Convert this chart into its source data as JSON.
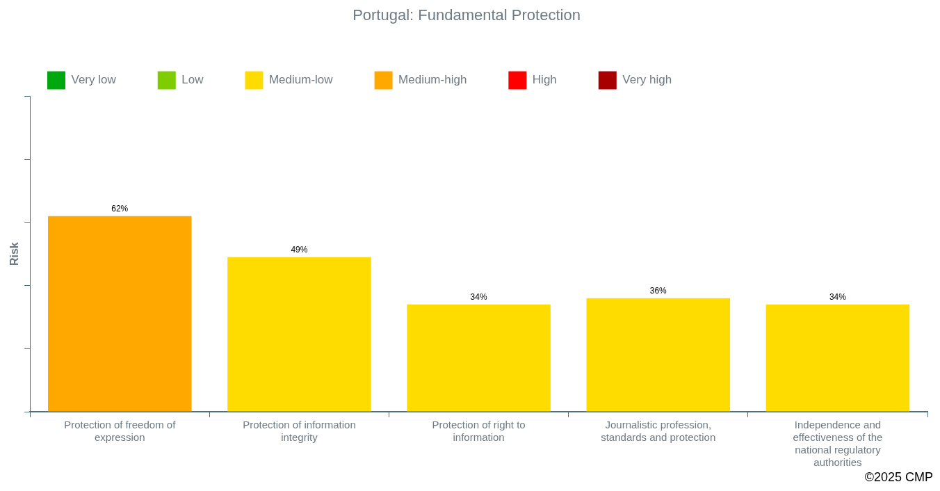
{
  "chart_data": {
    "type": "bar",
    "title": "Portugal: Fundamental Protection",
    "ylabel": "Risk",
    "categories": [
      "Protection of freedom of expression",
      "Protection of information integrity",
      "Protection of right to information",
      "Journalistic profession, standards and protection",
      "Independence and effectiveness of the national regulatory authorities"
    ],
    "stacked": true,
    "series": [
      {
        "name": "Very low",
        "color": "#00a80f",
        "values": [
          null,
          null,
          null,
          null,
          null
        ]
      },
      {
        "name": "Low",
        "color": "#7fcc00",
        "values": [
          null,
          null,
          null,
          null,
          null
        ]
      },
      {
        "name": "Medium-low",
        "color": "#ffdc00",
        "values": [
          null,
          49,
          34,
          36,
          34
        ],
        "value_labels": [
          null,
          "49%",
          "34%",
          "36%",
          "34%"
        ]
      },
      {
        "name": "Medium-high",
        "color": "#ffa800",
        "values": [
          62,
          null,
          null,
          null,
          null
        ],
        "value_labels": [
          "62%",
          null,
          null,
          null,
          null
        ]
      },
      {
        "name": "High",
        "color": "#ff0000",
        "values": [
          null,
          null,
          null,
          null,
          null
        ]
      },
      {
        "name": "Very high",
        "color": "#a80000",
        "values": [
          null,
          null,
          null,
          null,
          null
        ]
      }
    ],
    "ylim": [
      0,
      100
    ],
    "yticks": [
      {
        "value": 0,
        "label": null
      },
      {
        "value": 20,
        "label": null
      },
      {
        "value": 40,
        "label": null
      },
      {
        "value": 60,
        "label": null
      },
      {
        "value": 80,
        "label": null
      },
      {
        "value": 100,
        "label": null
      }
    ],
    "tick_labels": "x",
    "grid": false,
    "legend": "top left",
    "annotations": [
      "©2025 CMP"
    ]
  }
}
